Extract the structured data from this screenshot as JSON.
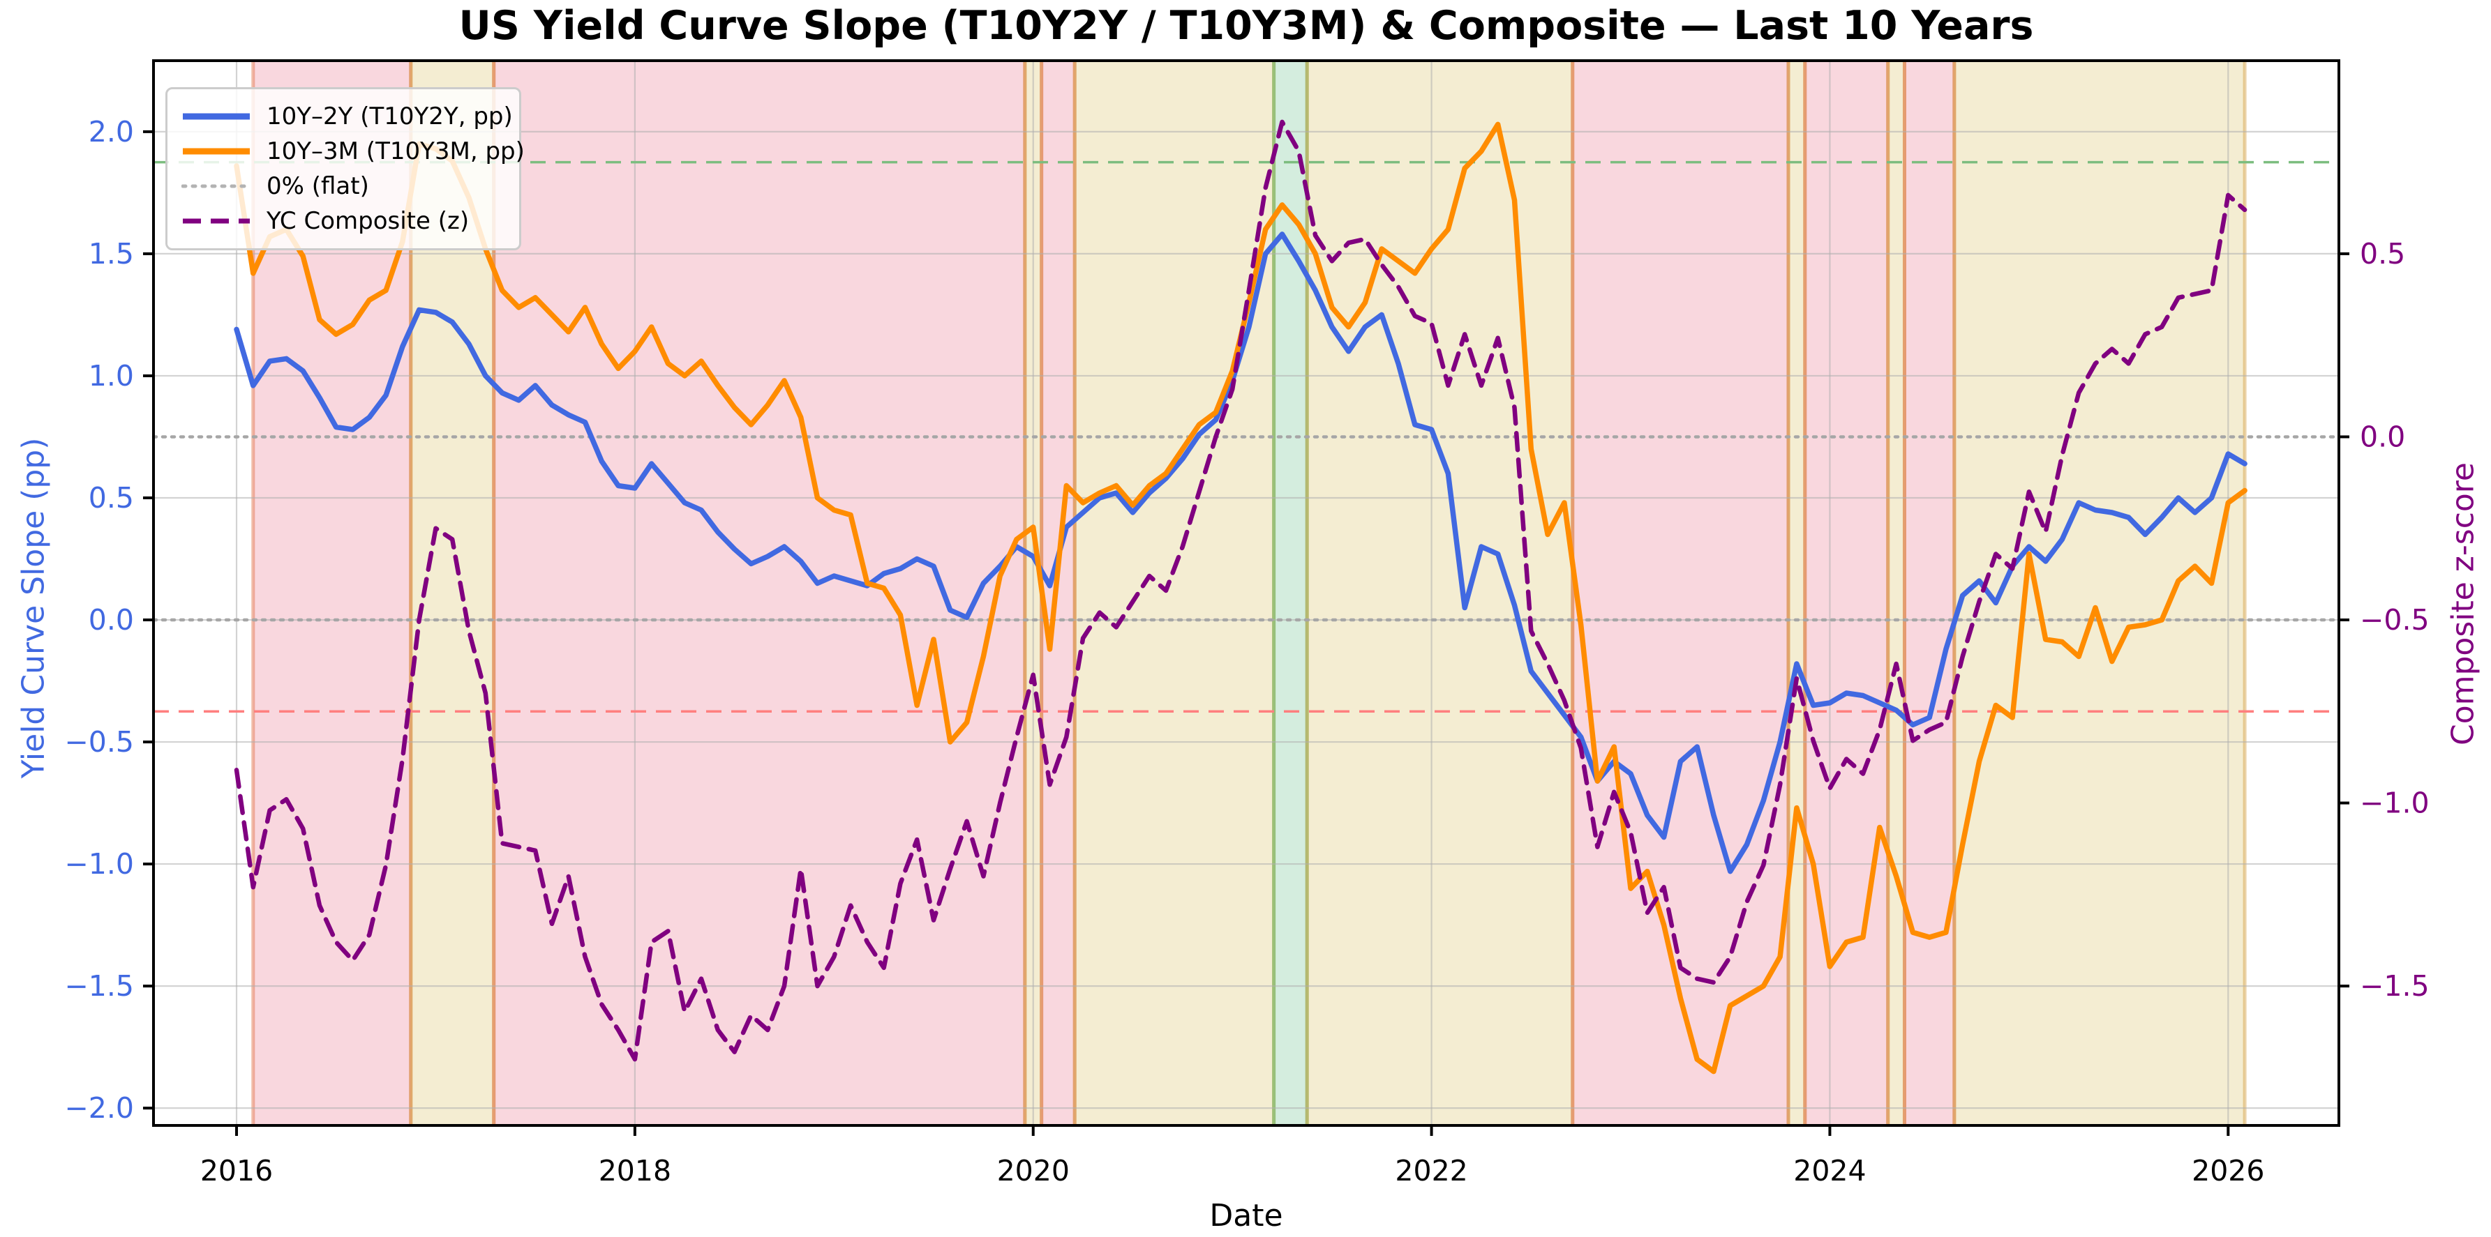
{
  "title": "US Yield Curve Slope (T10Y2Y / T10Y3M) & Composite — Last 10 Years",
  "axes": {
    "x_label": "Date",
    "y_left_label": "Yield Curve Slope (pp)",
    "y_right_label": "Composite z-score",
    "x_ticks": [
      {
        "label": "2016",
        "year": 2016
      },
      {
        "label": "2018",
        "year": 2018
      },
      {
        "label": "2020",
        "year": 2020
      },
      {
        "label": "2022",
        "year": 2022
      },
      {
        "label": "2024",
        "year": 2024
      },
      {
        "label": "2026",
        "year": 2026
      }
    ],
    "y_left_ticks": [
      {
        "label": "2.0",
        "pp": 2.0
      },
      {
        "label": "1.5",
        "pp": 1.5
      },
      {
        "label": "1.0",
        "pp": 1.0
      },
      {
        "label": "0.5",
        "pp": 0.5
      },
      {
        "label": "0.0",
        "pp": 0.0
      },
      {
        "label": "−0.5",
        "pp": -0.5
      },
      {
        "label": "−1.0",
        "pp": -1.0
      },
      {
        "label": "−1.5",
        "pp": -1.5
      },
      {
        "label": "−2.0",
        "pp": -2.0
      }
    ],
    "y_right_ticks": [
      {
        "label": "0.5",
        "z": 0.5
      },
      {
        "label": "0.0",
        "z": 0.0
      },
      {
        "label": "−0.5",
        "z": -0.5
      },
      {
        "label": "−1.0",
        "z": -1.0
      },
      {
        "label": "−1.5",
        "z": -1.5
      }
    ]
  },
  "legend": [
    {
      "label": "10Y–2Y (T10Y2Y, pp)",
      "style": "solid",
      "color": "#4169e1",
      "width": 9
    },
    {
      "label": "10Y–3M (T10Y3M, pp)",
      "style": "solid",
      "color": "#ff8c00",
      "width": 9
    },
    {
      "label": "0% (flat)",
      "style": "dotted",
      "color": "#b3b3b3",
      "width": 5
    },
    {
      "label": "YC Composite (z)",
      "style": "dashed",
      "color": "#800080",
      "width": 7
    }
  ],
  "colors": {
    "blue": "#4169e1",
    "orange": "#ff8c00",
    "purple": "#800080",
    "ref_green": "#7cbd7f",
    "ref_red": "#ff7f7f",
    "ref_gray": "#a6a6a6",
    "grid": "rgba(175,175,175,0.55)",
    "band_red": "rgba(220,20,60,0.17)",
    "band_yellow": "rgba(199,160,15,0.19)",
    "band_green": "rgba(0,150,60,0.17)",
    "edge_red": "rgba(228,120,80,0.50)",
    "edge_yellow": "rgba(210,155,60,0.45)",
    "edge_green": "rgba(100,185,100,0.55)",
    "spine": "#000000"
  },
  "chart_data": {
    "type": "line",
    "freq": "monthly",
    "x_start": {
      "year": 2016,
      "month": 1
    },
    "n_points": 122,
    "xlim": [
      2015.583,
      2026.556
    ],
    "ylim_left_pp": [
      -2.071,
      2.291
    ],
    "ylim_right_z": [
      -1.881,
      1.027
    ],
    "right_axis_map": "pp = 0.75 + 1.5 * z",
    "grid": true,
    "legend_position": "upper left",
    "series": [
      {
        "name": "10Y–2Y (T10Y2Y, pp)",
        "axis": "left",
        "color_key": "blue",
        "style": "solid",
        "values": [
          1.19,
          0.96,
          1.06,
          1.07,
          1.02,
          0.91,
          0.79,
          0.78,
          0.83,
          0.92,
          1.12,
          1.27,
          1.26,
          1.22,
          1.13,
          1.0,
          0.93,
          0.9,
          0.96,
          0.88,
          0.84,
          0.81,
          0.65,
          0.55,
          0.54,
          0.64,
          0.56,
          0.48,
          0.45,
          0.36,
          0.29,
          0.23,
          0.26,
          0.3,
          0.24,
          0.15,
          0.18,
          0.16,
          0.14,
          0.19,
          0.21,
          0.25,
          0.22,
          0.04,
          0.01,
          0.15,
          0.22,
          0.3,
          0.26,
          0.14,
          0.38,
          0.44,
          0.5,
          0.52,
          0.44,
          0.52,
          0.58,
          0.66,
          0.76,
          0.82,
          0.98,
          1.2,
          1.5,
          1.58,
          1.47,
          1.35,
          1.2,
          1.1,
          1.2,
          1.25,
          1.05,
          0.8,
          0.78,
          0.6,
          0.05,
          0.3,
          0.27,
          0.06,
          -0.21,
          -0.3,
          -0.39,
          -0.48,
          -0.66,
          -0.58,
          -0.63,
          -0.8,
          -0.89,
          -0.58,
          -0.52,
          -0.8,
          -1.03,
          -0.92,
          -0.74,
          -0.5,
          -0.18,
          -0.35,
          -0.34,
          -0.3,
          -0.31,
          -0.34,
          -0.37,
          -0.43,
          -0.4,
          -0.12,
          0.1,
          0.16,
          0.07,
          0.22,
          0.3,
          0.24,
          0.33,
          0.48,
          0.45,
          0.44,
          0.42,
          0.35,
          0.42,
          0.5,
          0.44,
          0.5,
          0.68,
          0.64
        ]
      },
      {
        "name": "10Y–3M (T10Y3M, pp)",
        "axis": "left",
        "color_key": "orange",
        "style": "solid",
        "values": [
          1.86,
          1.42,
          1.57,
          1.6,
          1.49,
          1.23,
          1.17,
          1.21,
          1.31,
          1.35,
          1.55,
          1.95,
          1.93,
          1.88,
          1.73,
          1.52,
          1.35,
          1.28,
          1.32,
          1.25,
          1.18,
          1.28,
          1.13,
          1.03,
          1.1,
          1.2,
          1.05,
          1.0,
          1.06,
          0.96,
          0.87,
          0.8,
          0.88,
          0.98,
          0.83,
          0.5,
          0.45,
          0.43,
          0.15,
          0.13,
          0.02,
          -0.35,
          -0.08,
          -0.5,
          -0.42,
          -0.15,
          0.18,
          0.33,
          0.38,
          -0.12,
          0.55,
          0.48,
          0.52,
          0.55,
          0.47,
          0.55,
          0.6,
          0.7,
          0.8,
          0.85,
          1.02,
          1.3,
          1.6,
          1.7,
          1.62,
          1.5,
          1.28,
          1.2,
          1.3,
          1.52,
          1.47,
          1.42,
          1.52,
          1.6,
          1.85,
          1.92,
          2.03,
          1.72,
          0.7,
          0.35,
          0.48,
          -0.02,
          -0.66,
          -0.52,
          -1.1,
          -1.03,
          -1.25,
          -1.55,
          -1.8,
          -1.85,
          -1.58,
          -1.54,
          -1.5,
          -1.38,
          -0.77,
          -1.0,
          -1.42,
          -1.32,
          -1.3,
          -0.85,
          -1.05,
          -1.28,
          -1.3,
          -1.28,
          -0.92,
          -0.58,
          -0.35,
          -0.4,
          0.27,
          -0.08,
          -0.09,
          -0.15,
          0.05,
          -0.17,
          -0.03,
          -0.02,
          0.0,
          0.16,
          0.22,
          0.15,
          0.48,
          0.53
        ]
      },
      {
        "name": "YC Composite (z)",
        "axis": "right",
        "color_key": "purple",
        "style": "dashed",
        "values": [
          -0.91,
          -1.23,
          -1.02,
          -0.99,
          -1.07,
          -1.28,
          -1.38,
          -1.43,
          -1.36,
          -1.17,
          -0.88,
          -0.5,
          -0.25,
          -0.28,
          -0.53,
          -0.7,
          -1.11,
          -1.12,
          -1.13,
          -1.33,
          -1.2,
          -1.42,
          -1.55,
          -1.62,
          -1.7,
          -1.38,
          -1.35,
          -1.57,
          -1.48,
          -1.62,
          -1.68,
          -1.58,
          -1.62,
          -1.5,
          -1.18,
          -1.5,
          -1.42,
          -1.28,
          -1.38,
          -1.45,
          -1.22,
          -1.1,
          -1.32,
          -1.18,
          -1.05,
          -1.2,
          -1.0,
          -0.82,
          -0.65,
          -0.95,
          -0.82,
          -0.55,
          -0.48,
          -0.52,
          -0.45,
          -0.38,
          -0.42,
          -0.3,
          -0.15,
          0.0,
          0.13,
          0.4,
          0.68,
          0.86,
          0.78,
          0.55,
          0.48,
          0.53,
          0.54,
          0.47,
          0.41,
          0.33,
          0.31,
          0.14,
          0.28,
          0.14,
          0.27,
          0.08,
          -0.53,
          -0.62,
          -0.72,
          -0.85,
          -1.12,
          -0.97,
          -1.08,
          -1.3,
          -1.23,
          -1.45,
          -1.48,
          -1.49,
          -1.42,
          -1.27,
          -1.17,
          -0.95,
          -0.66,
          -0.83,
          -0.96,
          -0.88,
          -0.92,
          -0.8,
          -0.62,
          -0.83,
          -0.8,
          -0.78,
          -0.6,
          -0.45,
          -0.32,
          -0.36,
          -0.15,
          -0.26,
          -0.05,
          0.12,
          0.2,
          0.24,
          0.2,
          0.28,
          0.3,
          0.38,
          0.39,
          0.4,
          0.66,
          0.62
        ]
      }
    ],
    "ref_lines": [
      {
        "pp": 1.875,
        "style": "dashed",
        "color_key": "ref_green"
      },
      {
        "pp": -0.375,
        "style": "dashed",
        "color_key": "ref_red"
      },
      {
        "pp": 0.75,
        "style": "dotted",
        "color_key": "ref_gray"
      },
      {
        "pp": 0.0,
        "style": "dotted",
        "color_key": "ref_gray"
      }
    ],
    "regimes": [
      {
        "color": "red",
        "from": 2016.0833,
        "to": 2016.875
      },
      {
        "color": "yellow",
        "from": 2016.875,
        "to": 2017.2917
      },
      {
        "color": "red",
        "from": 2017.2917,
        "to": 2019.9583
      },
      {
        "color": "yellow",
        "from": 2019.9583,
        "to": 2020.0417
      },
      {
        "color": "red",
        "from": 2020.0417,
        "to": 2020.2083
      },
      {
        "color": "yellow",
        "from": 2020.2083,
        "to": 2021.2083
      },
      {
        "color": "green",
        "from": 2021.2083,
        "to": 2021.375
      },
      {
        "color": "yellow",
        "from": 2021.375,
        "to": 2022.7083
      },
      {
        "color": "red",
        "from": 2022.7083,
        "to": 2023.7917
      },
      {
        "color": "yellow",
        "from": 2023.7917,
        "to": 2023.875
      },
      {
        "color": "red",
        "from": 2023.875,
        "to": 2024.2917
      },
      {
        "color": "yellow",
        "from": 2024.2917,
        "to": 2024.375
      },
      {
        "color": "red",
        "from": 2024.375,
        "to": 2024.625
      },
      {
        "color": "yellow",
        "from": 2024.625,
        "to": 2026.0833
      }
    ]
  }
}
